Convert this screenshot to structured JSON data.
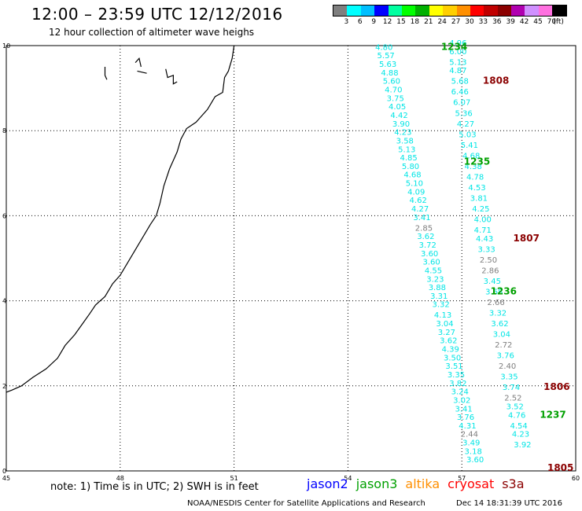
{
  "title": "12:00 – 23:59 UTC 12/12/2016",
  "subtitle": "12 hour collection of altimeter wave heighs",
  "colorbar": {
    "colors": [
      "#7f7f7f",
      "#00ffff",
      "#00bfff",
      "#0000ff",
      "#00ffa0",
      "#00ff00",
      "#00b000",
      "#ffff00",
      "#ffcf00",
      "#ff8f00",
      "#ff0000",
      "#c00000",
      "#8b0000",
      "#b000b0",
      "#d090ff",
      "#ff70e0",
      "#000000"
    ],
    "labels": [
      "3",
      "6",
      "9",
      "12",
      "15",
      "18",
      "21",
      "24",
      "27",
      "30",
      "33",
      "36",
      "39",
      "42",
      "45",
      "70",
      "(ft)"
    ]
  },
  "note": "note: 1) Time is in UTC; 2) SWH is in feet",
  "legend": [
    {
      "label": "jason2",
      "color": "#0000ff"
    },
    {
      "label": "jason3",
      "color": "#00a000"
    },
    {
      "label": "altika",
      "color": "#ff8f00"
    },
    {
      "label": "cryosat",
      "color": "#ff0000"
    },
    {
      "label": "s3a",
      "color": "#8b0000"
    }
  ],
  "credit": "NOAA/NESDIS Center for Satellite Applications and Research",
  "credit_date": "Dec 14 18:31:39 UTC 2016",
  "chart_data": {
    "type": "scatter",
    "title": "12:00 – 23:59 UTC 12/12/2016",
    "xlim": [
      45,
      60
    ],
    "ylim": [
      0,
      10
    ],
    "xticks": [
      "45",
      "48",
      "51",
      "54",
      "57",
      "60"
    ],
    "yticks": [
      "0",
      "2",
      "4",
      "6",
      "8",
      "10"
    ],
    "grid": true,
    "coastline": [
      [
        51.0,
        10.0
      ],
      [
        50.95,
        9.7
      ],
      [
        50.85,
        9.4
      ],
      [
        50.75,
        9.25
      ],
      [
        50.7,
        8.9
      ],
      [
        50.5,
        8.8
      ],
      [
        50.3,
        8.5
      ],
      [
        50.0,
        8.2
      ],
      [
        49.75,
        8.05
      ],
      [
        49.6,
        7.8
      ],
      [
        49.5,
        7.5
      ],
      [
        49.3,
        7.1
      ],
      [
        49.15,
        6.7
      ],
      [
        49.05,
        6.3
      ],
      [
        48.95,
        6.0
      ],
      [
        48.8,
        5.8
      ],
      [
        48.6,
        5.5
      ],
      [
        48.4,
        5.2
      ],
      [
        48.2,
        4.9
      ],
      [
        48.0,
        4.6
      ],
      [
        47.8,
        4.4
      ],
      [
        47.6,
        4.1
      ],
      [
        47.35,
        3.9
      ],
      [
        47.2,
        3.7
      ],
      [
        47.0,
        3.45
      ],
      [
        46.8,
        3.2
      ],
      [
        46.55,
        2.95
      ],
      [
        46.35,
        2.65
      ],
      [
        46.05,
        2.4
      ],
      [
        45.7,
        2.2
      ],
      [
        45.4,
        2.0
      ],
      [
        45.15,
        1.9
      ],
      [
        45.0,
        1.85
      ]
    ],
    "islands": [
      [
        [
          47.6,
          9.5
        ],
        [
          47.6,
          9.3
        ],
        [
          47.65,
          9.2
        ]
      ],
      [
        [
          48.4,
          9.6
        ],
        [
          48.5,
          9.7
        ],
        [
          48.55,
          9.5
        ]
      ],
      [
        [
          48.45,
          9.4
        ],
        [
          48.7,
          9.35
        ]
      ],
      [
        [
          49.2,
          9.45
        ],
        [
          49.25,
          9.25
        ],
        [
          49.4,
          9.3
        ],
        [
          49.4,
          9.1
        ],
        [
          49.5,
          9.15
        ]
      ]
    ],
    "tracks": [
      {
        "pass": "1234",
        "satellite": "jason3",
        "label_pos": [
          56.8,
          9.9
        ],
        "points": [
          {
            "x": 54.95,
            "y": 9.9,
            "v": "4.80"
          },
          {
            "x": 55.0,
            "y": 9.7,
            "v": "5.57"
          },
          {
            "x": 55.05,
            "y": 9.5,
            "v": "5.63"
          },
          {
            "x": 55.1,
            "y": 9.3,
            "v": "4.88"
          },
          {
            "x": 55.15,
            "y": 9.1,
            "v": "5.60"
          },
          {
            "x": 55.2,
            "y": 8.9,
            "v": "4.70"
          },
          {
            "x": 55.25,
            "y": 8.7,
            "v": "3.75"
          },
          {
            "x": 55.3,
            "y": 8.5,
            "v": "4.05"
          },
          {
            "x": 55.35,
            "y": 8.3,
            "v": "4.42"
          },
          {
            "x": 55.4,
            "y": 8.1,
            "v": "3.90"
          },
          {
            "x": 55.45,
            "y": 7.9,
            "v": "4.23"
          },
          {
            "x": 55.5,
            "y": 7.7,
            "v": "3.58"
          },
          {
            "x": 55.55,
            "y": 7.5,
            "v": "5.13"
          },
          {
            "x": 55.6,
            "y": 7.3,
            "v": "4.85"
          },
          {
            "x": 55.65,
            "y": 7.1,
            "v": "5.80"
          },
          {
            "x": 55.7,
            "y": 6.9,
            "v": "4.68"
          },
          {
            "x": 55.75,
            "y": 6.7,
            "v": "5.10"
          },
          {
            "x": 55.8,
            "y": 6.5,
            "v": "4.09"
          },
          {
            "x": 55.85,
            "y": 6.3,
            "v": "4.62"
          },
          {
            "x": 55.9,
            "y": 6.1,
            "v": "4.27"
          },
          {
            "x": 55.95,
            "y": 5.9,
            "v": "3.41"
          }
        ]
      },
      {
        "pass": "1808",
        "satellite": "s3a",
        "label_pos": [
          57.9,
          9.1
        ],
        "points": [
          {
            "x": 56.9,
            "y": 10.0,
            "v": "4.96"
          },
          {
            "x": 56.9,
            "y": 9.8,
            "v": "6.00"
          },
          {
            "x": 56.9,
            "y": 9.55,
            "v": "5.13"
          },
          {
            "x": 56.9,
            "y": 9.35,
            "v": "4.87"
          },
          {
            "x": 56.95,
            "y": 9.1,
            "v": "5.68"
          },
          {
            "x": 56.95,
            "y": 8.85,
            "v": "6.46"
          },
          {
            "x": 57.0,
            "y": 8.6,
            "v": "6.07"
          },
          {
            "x": 57.05,
            "y": 8.35,
            "v": "5.36"
          },
          {
            "x": 57.1,
            "y": 8.1,
            "v": "4.27"
          },
          {
            "x": 57.15,
            "y": 7.85,
            "v": "5.03"
          },
          {
            "x": 57.2,
            "y": 7.6,
            "v": "5.41"
          },
          {
            "x": 57.25,
            "y": 7.35,
            "v": "4.68"
          },
          {
            "x": 57.3,
            "y": 7.1,
            "v": "4.38"
          },
          {
            "x": 57.35,
            "y": 6.85,
            "v": "4.78"
          },
          {
            "x": 57.4,
            "y": 6.6,
            "v": "4.53"
          },
          {
            "x": 57.45,
            "y": 6.35,
            "v": "3.81"
          },
          {
            "x": 57.5,
            "y": 6.1,
            "v": "4.25"
          },
          {
            "x": 57.55,
            "y": 5.85,
            "v": "4.00"
          }
        ]
      },
      {
        "pass": "1235",
        "satellite": "jason3",
        "label_pos": [
          57.4,
          7.2
        ],
        "points": [
          {
            "x": 56.0,
            "y": 5.65,
            "v": "2.85"
          },
          {
            "x": 56.05,
            "y": 5.45,
            "v": "3.62"
          },
          {
            "x": 56.1,
            "y": 5.25,
            "v": "3.72"
          },
          {
            "x": 56.15,
            "y": 5.05,
            "v": "3.60"
          },
          {
            "x": 56.2,
            "y": 4.85,
            "v": "3.60"
          },
          {
            "x": 56.25,
            "y": 4.65,
            "v": "4.55"
          },
          {
            "x": 56.3,
            "y": 4.45,
            "v": "3.23"
          },
          {
            "x": 56.35,
            "y": 4.25,
            "v": "3.88"
          },
          {
            "x": 56.4,
            "y": 4.05,
            "v": "3.31"
          },
          {
            "x": 56.45,
            "y": 3.85,
            "v": "3.32"
          }
        ]
      },
      {
        "pass": "1807",
        "satellite": "s3a",
        "label_pos": [
          58.7,
          5.4
        ],
        "points": [
          {
            "x": 57.55,
            "y": 5.6,
            "v": "4.71"
          },
          {
            "x": 57.6,
            "y": 5.4,
            "v": "4.43"
          },
          {
            "x": 57.65,
            "y": 5.15,
            "v": "3.33"
          },
          {
            "x": 57.7,
            "y": 4.9,
            "v": "2.50"
          },
          {
            "x": 57.75,
            "y": 4.65,
            "v": "2.86"
          },
          {
            "x": 57.8,
            "y": 4.4,
            "v": "3.45"
          },
          {
            "x": 57.85,
            "y": 4.15,
            "v": "3.68"
          },
          {
            "x": 57.9,
            "y": 3.9,
            "v": "2.66"
          },
          {
            "x": 57.95,
            "y": 3.65,
            "v": "3.32"
          },
          {
            "x": 58.0,
            "y": 3.4,
            "v": "3.62"
          },
          {
            "x": 58.05,
            "y": 3.15,
            "v": "3.04"
          },
          {
            "x": 58.1,
            "y": 2.9,
            "v": "2.72"
          },
          {
            "x": 58.15,
            "y": 2.65,
            "v": "3.76"
          },
          {
            "x": 58.2,
            "y": 2.4,
            "v": "2.40"
          }
        ]
      },
      {
        "pass": "1236",
        "satellite": "jason3",
        "label_pos": [
          58.1,
          4.15
        ],
        "points": [
          {
            "x": 56.5,
            "y": 3.6,
            "v": "4.13"
          },
          {
            "x": 56.55,
            "y": 3.4,
            "v": "3.04"
          },
          {
            "x": 56.6,
            "y": 3.2,
            "v": "3.27"
          },
          {
            "x": 56.65,
            "y": 3.0,
            "v": "3.62"
          },
          {
            "x": 56.7,
            "y": 2.8,
            "v": "4.39"
          },
          {
            "x": 56.75,
            "y": 2.6,
            "v": "3.50"
          },
          {
            "x": 56.8,
            "y": 2.4,
            "v": "3.51"
          },
          {
            "x": 56.85,
            "y": 2.2,
            "v": "3.35"
          },
          {
            "x": 56.9,
            "y": 2.0,
            "v": "3.82"
          },
          {
            "x": 56.95,
            "y": 1.8,
            "v": "3.24"
          }
        ]
      },
      {
        "pass": "1806",
        "satellite": "s3a",
        "label_pos": [
          59.5,
          1.9
        ],
        "points": [
          {
            "x": 58.25,
            "y": 2.15,
            "v": "3.35"
          },
          {
            "x": 58.3,
            "y": 1.9,
            "v": "3.74"
          },
          {
            "x": 58.35,
            "y": 1.65,
            "v": "2.52"
          },
          {
            "x": 58.4,
            "y": 1.45,
            "v": "3.52"
          },
          {
            "x": 58.45,
            "y": 1.25,
            "v": "4.76"
          },
          {
            "x": 58.5,
            "y": 1.0,
            "v": "4.54"
          },
          {
            "x": 58.55,
            "y": 0.8,
            "v": "4.23"
          },
          {
            "x": 58.6,
            "y": 0.55,
            "v": "3.92"
          }
        ]
      },
      {
        "pass": "1237",
        "satellite": "jason3",
        "label_pos": [
          59.4,
          1.25
        ],
        "points": [
          {
            "x": 57.0,
            "y": 1.6,
            "v": "3.02"
          },
          {
            "x": 57.05,
            "y": 1.4,
            "v": "3.41"
          },
          {
            "x": 57.1,
            "y": 1.2,
            "v": "3.76"
          },
          {
            "x": 57.15,
            "y": 1.0,
            "v": "4.31"
          },
          {
            "x": 57.2,
            "y": 0.8,
            "v": "2.44"
          },
          {
            "x": 57.25,
            "y": 0.6,
            "v": "3.49"
          },
          {
            "x": 57.3,
            "y": 0.4,
            "v": "3.18"
          },
          {
            "x": 57.35,
            "y": 0.2,
            "v": "3.60"
          }
        ]
      },
      {
        "pass": "1805",
        "satellite": "s3a",
        "label_pos": [
          59.6,
          0.0
        ],
        "points": []
      }
    ]
  }
}
